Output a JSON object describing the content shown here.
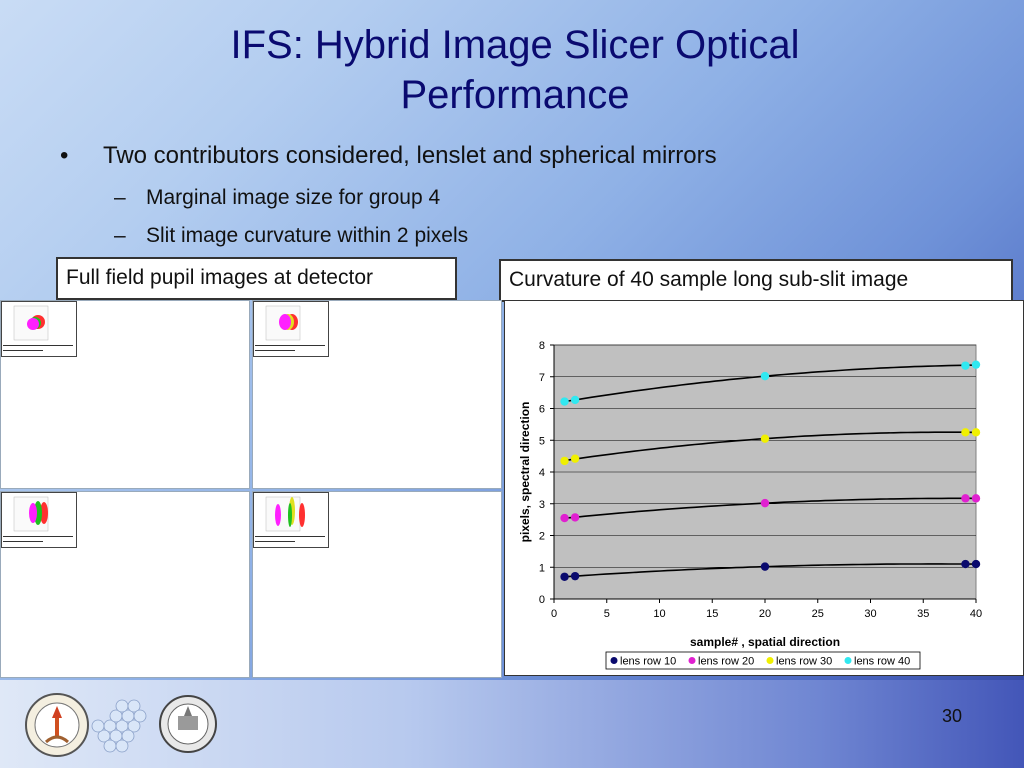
{
  "slide": {
    "title": "IFS: Hybrid Image Slicer Optical Performance",
    "bullet_main": "Two contributors considered, lenslet and spherical mirrors",
    "sub_bullets": [
      "Marginal image size for group 4",
      "Slit image curvature within 2 pixels"
    ],
    "bullet_symbol": "•",
    "dash_symbol": "–",
    "left_box_label": "Full field pupil images at detector",
    "right_box_label": "Curvature of 40 sample long sub-slit image",
    "page_number": "30"
  },
  "chart_data": {
    "type": "scatter",
    "title": "",
    "xlabel": "sample# , spatial direction",
    "ylabel": "pixels, spectral direction",
    "xlim": [
      0,
      40
    ],
    "ylim": [
      0,
      8
    ],
    "xticks": [
      "0",
      "5",
      "10",
      "15",
      "20",
      "25",
      "30",
      "35",
      "40"
    ],
    "yticks": [
      "0",
      "1",
      "2",
      "3",
      "4",
      "5",
      "6",
      "7",
      "8"
    ],
    "grid": true,
    "legend_position": "bottom",
    "trendlines": true,
    "series": [
      {
        "name": "lens row 10",
        "color": "#0a0a6e",
        "points": [
          [
            1,
            0.7
          ],
          [
            2,
            0.72
          ],
          [
            20,
            1.02
          ],
          [
            39,
            1.1
          ],
          [
            40,
            1.1
          ]
        ]
      },
      {
        "name": "lens row 20",
        "color": "#e020d0",
        "points": [
          [
            1,
            2.55
          ],
          [
            2,
            2.57
          ],
          [
            20,
            3.02
          ],
          [
            39,
            3.17
          ],
          [
            40,
            3.17
          ]
        ]
      },
      {
        "name": "lens row 30",
        "color": "#f0f000",
        "points": [
          [
            1,
            4.35
          ],
          [
            2,
            4.42
          ],
          [
            20,
            5.05
          ],
          [
            39,
            5.25
          ],
          [
            40,
            5.25
          ]
        ]
      },
      {
        "name": "lens row 40",
        "color": "#30e8f0",
        "points": [
          [
            1,
            6.22
          ],
          [
            2,
            6.27
          ],
          [
            20,
            7.02
          ],
          [
            39,
            7.35
          ],
          [
            40,
            7.38
          ]
        ]
      }
    ]
  }
}
